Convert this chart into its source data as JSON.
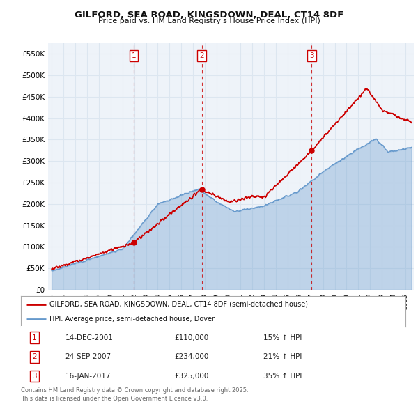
{
  "title": "GILFORD, SEA ROAD, KINGSDOWN, DEAL, CT14 8DF",
  "subtitle": "Price paid vs. HM Land Registry's House Price Index (HPI)",
  "ylim": [
    0,
    575000
  ],
  "yticks": [
    0,
    50000,
    100000,
    150000,
    200000,
    250000,
    300000,
    350000,
    400000,
    450000,
    500000,
    550000
  ],
  "ytick_labels": [
    "£0",
    "£50K",
    "£100K",
    "£150K",
    "£200K",
    "£250K",
    "£300K",
    "£350K",
    "£400K",
    "£450K",
    "£500K",
    "£550K"
  ],
  "background_color": "#ffffff",
  "grid_color": "#dce6f0",
  "chart_bg": "#eef3f9",
  "sale_color": "#cc0000",
  "hpi_color": "#6699cc",
  "vline_color": "#cc0000",
  "sale_years": [
    2001.958,
    2007.729,
    2017.042
  ],
  "sale_prices": [
    110000,
    234000,
    325000
  ],
  "legend_label_sale": "GILFORD, SEA ROAD, KINGSDOWN, DEAL, CT14 8DF (semi-detached house)",
  "legend_label_hpi": "HPI: Average price, semi-detached house, Dover",
  "footer": "Contains HM Land Registry data © Crown copyright and database right 2025.\nThis data is licensed under the Open Government Licence v3.0.",
  "table_rows": [
    [
      "1",
      "14-DEC-2001",
      "£110,000",
      "15% ↑ HPI"
    ],
    [
      "2",
      "24-SEP-2007",
      "£234,000",
      "21% ↑ HPI"
    ],
    [
      "3",
      "16-JAN-2017",
      "£325,000",
      "35% ↑ HPI"
    ]
  ]
}
